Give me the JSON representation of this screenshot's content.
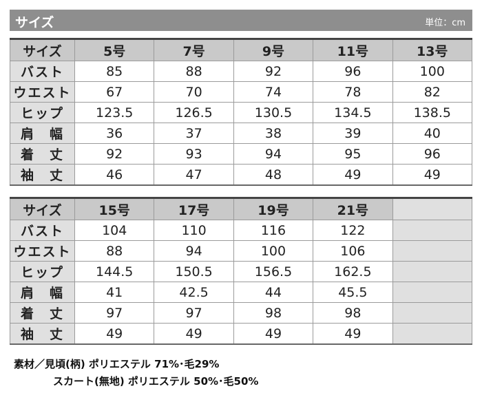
{
  "header": {
    "title": "サイズ",
    "unit": "単位：cm"
  },
  "row_labels": [
    "バスト",
    "ウエスト",
    "ヒップ",
    "肩　幅",
    "着　丈",
    "袖　丈"
  ],
  "corner": "サイズ",
  "table1": {
    "sizes": [
      "5号",
      "7号",
      "9号",
      "11号",
      "13号"
    ],
    "rows": [
      [
        "85",
        "88",
        "92",
        "96",
        "100"
      ],
      [
        "67",
        "70",
        "74",
        "78",
        "82"
      ],
      [
        "123.5",
        "126.5",
        "130.5",
        "134.5",
        "138.5"
      ],
      [
        "36",
        "37",
        "38",
        "39",
        "40"
      ],
      [
        "92",
        "93",
        "94",
        "95",
        "96"
      ],
      [
        "46",
        "47",
        "48",
        "49",
        "49"
      ]
    ]
  },
  "table2": {
    "sizes": [
      "15号",
      "17号",
      "19号",
      "21号"
    ],
    "rows": [
      [
        "104",
        "110",
        "116",
        "122"
      ],
      [
        "88",
        "94",
        "100",
        "106"
      ],
      [
        "144.5",
        "150.5",
        "156.5",
        "162.5"
      ],
      [
        "41",
        "42.5",
        "44",
        "45.5"
      ],
      [
        "97",
        "97",
        "98",
        "98"
      ],
      [
        "49",
        "49",
        "49",
        "49"
      ]
    ]
  },
  "notes": [
    "素材／見頃(柄) ポリエステル 71%･毛29%",
    "スカート(無地) ポリエステル 50%･毛50%"
  ]
}
